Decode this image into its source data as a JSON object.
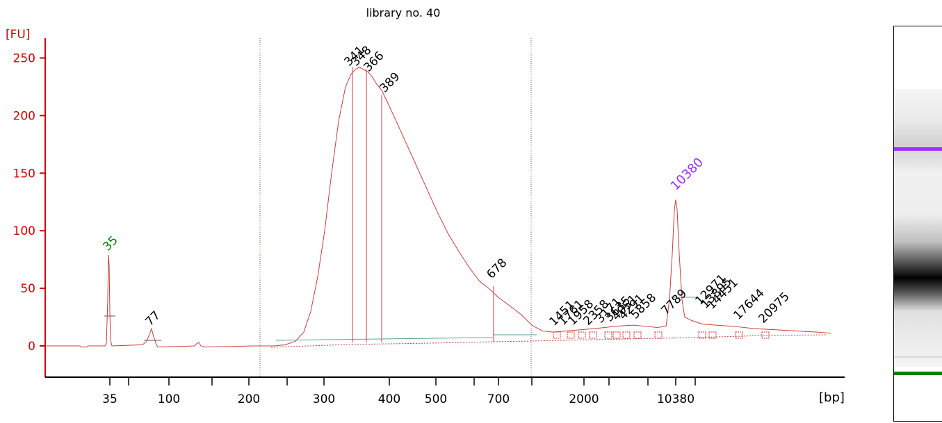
{
  "chart_data": {
    "type": "line",
    "title": "library no. 40",
    "ylabel": "[FU]",
    "xunit": "[bp]",
    "ylim": [
      -25,
      265
    ],
    "yticks": [
      0,
      50,
      100,
      150,
      200,
      250
    ],
    "xticks": [
      "35",
      "100",
      "200",
      "300",
      "400",
      "500",
      "700",
      "2000",
      "10380"
    ],
    "lower_marker": {
      "label": "35",
      "fu": 79,
      "color": "#008000"
    },
    "upper_marker": {
      "label": "10380",
      "fu": 127,
      "color": "#9b30ff"
    },
    "peak_labels": [
      {
        "label": "77",
        "fu": 15
      },
      {
        "label": "341",
        "fu": 242
      },
      {
        "label": "348",
        "fu": 242
      },
      {
        "label": "366",
        "fu": 240
      },
      {
        "label": "389",
        "fu": 218
      },
      {
        "label": "678",
        "fu": 52
      },
      {
        "label": "1451",
        "fu": 14
      },
      {
        "label": "1761",
        "fu": 15
      },
      {
        "label": "1958",
        "fu": 16
      },
      {
        "label": "2358",
        "fu": 16
      },
      {
        "label": "3171",
        "fu": 17
      },
      {
        "label": "3635",
        "fu": 18
      },
      {
        "label": "4051",
        "fu": 18
      },
      {
        "label": "4291",
        "fu": 18
      },
      {
        "label": "5858",
        "fu": 17
      },
      {
        "label": "7789",
        "fu": 17
      },
      {
        "label": "12971",
        "fu": 22
      },
      {
        "label": "13895",
        "fu": 20
      },
      {
        "label": "14451",
        "fu": 19
      },
      {
        "label": "17644",
        "fu": 17
      },
      {
        "label": "20975",
        "fu": 15
      }
    ],
    "series": [
      {
        "color": "#c83c3c",
        "points": [
          [
            0,
            0
          ],
          [
            50,
            0
          ],
          [
            52,
            -1
          ],
          [
            60,
            -1
          ],
          [
            62,
            0
          ],
          [
            86,
            0
          ],
          [
            88,
            2
          ],
          [
            90,
            40
          ],
          [
            91,
            79
          ],
          [
            92,
            70
          ],
          [
            93,
            30
          ],
          [
            94,
            5
          ],
          [
            96,
            0
          ],
          [
            140,
            1
          ],
          [
            146,
            4
          ],
          [
            150,
            10
          ],
          [
            153,
            15
          ],
          [
            156,
            8
          ],
          [
            160,
            1
          ],
          [
            162,
            -1
          ],
          [
            215,
            0
          ],
          [
            218,
            2
          ],
          [
            221,
            3
          ],
          [
            224,
            0
          ],
          [
            230,
            -1
          ],
          [
            300,
            0
          ],
          [
            330,
            0
          ],
          [
            345,
            1
          ],
          [
            360,
            4
          ],
          [
            372,
            12
          ],
          [
            382,
            30
          ],
          [
            392,
            60
          ],
          [
            402,
            100
          ],
          [
            412,
            150
          ],
          [
            422,
            195
          ],
          [
            432,
            225
          ],
          [
            440,
            236
          ],
          [
            446,
            240
          ],
          [
            452,
            242
          ],
          [
            458,
            240
          ],
          [
            464,
            238
          ],
          [
            470,
            234
          ],
          [
            476,
            228
          ],
          [
            484,
            222
          ],
          [
            492,
            212
          ],
          [
            505,
            195
          ],
          [
            520,
            175
          ],
          [
            535,
            155
          ],
          [
            550,
            135
          ],
          [
            565,
            115
          ],
          [
            580,
            97
          ],
          [
            595,
            82
          ],
          [
            610,
            68
          ],
          [
            625,
            56
          ],
          [
            638,
            50
          ],
          [
            652,
            42
          ],
          [
            668,
            35
          ],
          [
            685,
            27
          ],
          [
            700,
            18
          ],
          [
            715,
            13
          ],
          [
            730,
            12
          ],
          [
            750,
            13
          ],
          [
            770,
            14
          ],
          [
            790,
            15
          ],
          [
            805,
            16
          ],
          [
            820,
            17
          ],
          [
            845,
            18
          ],
          [
            865,
            17
          ],
          [
            880,
            16
          ],
          [
            893,
            17
          ],
          [
            898,
            40
          ],
          [
            902,
            80
          ],
          [
            905,
            118
          ],
          [
            907,
            127
          ],
          [
            909,
            118
          ],
          [
            912,
            80
          ],
          [
            916,
            40
          ],
          [
            920,
            25
          ],
          [
            930,
            22
          ],
          [
            945,
            19
          ],
          [
            965,
            18
          ],
          [
            990,
            17
          ],
          [
            1020,
            15
          ],
          [
            1050,
            14
          ],
          [
            1080,
            13
          ],
          [
            1110,
            12
          ],
          [
            1130,
            11
          ]
        ]
      }
    ]
  }
}
